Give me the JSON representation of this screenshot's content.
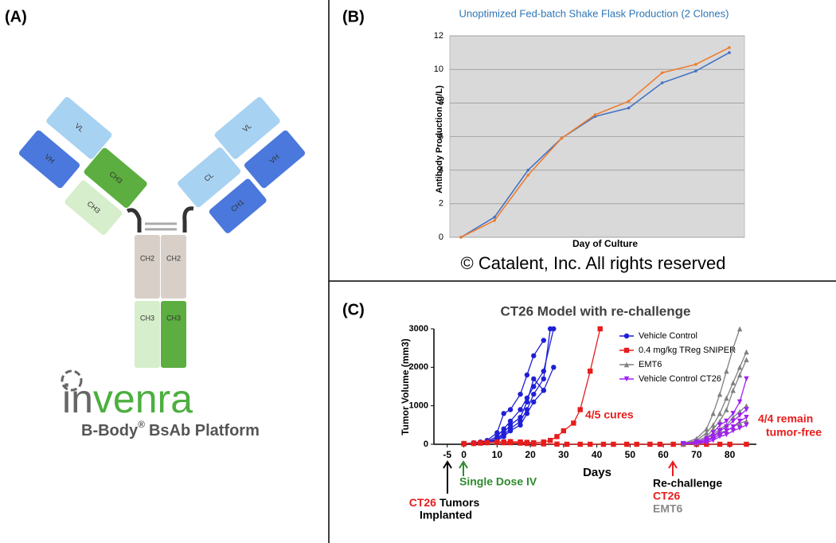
{
  "panel_labels": [
    "(A)",
    "(B)",
    "(C)"
  ],
  "diagram": {
    "domains": [
      "VL",
      "VH",
      "CH3",
      "CH3",
      "VL",
      "VH",
      "CL",
      "CH1",
      "CH2",
      "CH2",
      "CH3",
      "CH3"
    ],
    "logo": {
      "name_parts": [
        "in",
        "venra"
      ],
      "tagline": [
        "B-Body",
        "®",
        "BsAb Platform"
      ]
    }
  },
  "chart_data": [
    {
      "type": "line",
      "title": "Unoptimized Fed-batch Shake Flask Production (2 Clones)",
      "y_label": "Antibody Production (g/L)",
      "x_label": "Day of Culture",
      "footnote": "© Catalent, Inc.  All rights reserved",
      "categories": [
        null,
        null,
        null,
        null,
        null,
        null,
        null,
        null,
        null
      ],
      "series": [
        {
          "color": "#4472c4",
          "values": [
            0,
            1.2,
            4.0,
            5.9,
            7.2,
            7.7,
            9.2,
            9.9,
            11.0
          ]
        },
        {
          "color": "#ed7d31",
          "values": [
            0,
            1.0,
            3.7,
            5.9,
            7.3,
            8.1,
            9.8,
            10.3,
            11.3
          ]
        }
      ],
      "ylim": [
        0,
        12
      ],
      "yticks": [
        0,
        2,
        4,
        6,
        8,
        10,
        12
      ],
      "grid": true
    },
    {
      "type": "curves",
      "title": "CT26 Model with re-challenge",
      "y_label": "Tumor Volume (mm3)",
      "x_label": "Days",
      "xlim": [
        -9,
        88
      ],
      "xticks": [
        -5,
        0,
        10,
        20,
        30,
        40,
        50,
        60,
        70,
        80
      ],
      "ylim": [
        0,
        3000
      ],
      "yticks": [
        0,
        1000,
        2000,
        3000
      ],
      "series": [
        {
          "name": "Vehicle Control",
          "color": "#1f1fd6",
          "marker": "circle",
          "curves": [
            {
              "x": [
                0,
                3,
                5,
                7,
                10,
                12,
                14,
                17,
                19,
                21,
                24
              ],
              "values": [
                20,
                40,
                60,
                100,
                300,
                800,
                900,
                1300,
                1800,
                2300,
                2700
              ]
            },
            {
              "x": [
                0,
                3,
                5,
                7,
                10,
                12,
                14,
                17,
                19,
                21,
                24,
                27
              ],
              "values": [
                20,
                30,
                50,
                80,
                200,
                400,
                600,
                900,
                1200,
                1500,
                1900,
                3000
              ]
            },
            {
              "x": [
                0,
                3,
                5,
                7,
                10,
                12,
                14,
                17,
                19,
                21,
                24,
                27
              ],
              "values": [
                20,
                30,
                40,
                60,
                150,
                300,
                500,
                700,
                1100,
                1700,
                1400,
                2000
              ]
            },
            {
              "x": [
                0,
                3,
                5,
                7,
                10,
                12,
                14,
                17,
                19,
                21,
                24,
                26
              ],
              "values": [
                10,
                20,
                40,
                50,
                120,
                250,
                400,
                600,
                900,
                1300,
                1700,
                3000
              ]
            },
            {
              "x": [
                0,
                3,
                5,
                7,
                10,
                12,
                14,
                17,
                19,
                21,
                24
              ],
              "values": [
                10,
                20,
                30,
                40,
                100,
                200,
                350,
                500,
                800,
                1100,
                1400
              ]
            }
          ]
        },
        {
          "name": "0.4 mg/kg TReg SNIPER",
          "color": "#e81c1c",
          "marker": "square",
          "curves": [
            {
              "x": [
                0,
                3,
                5,
                7,
                10,
                12,
                14,
                17,
                19,
                21,
                24,
                26,
                28,
                30,
                33,
                35,
                38,
                41
              ],
              "values": [
                20,
                30,
                40,
                50,
                60,
                60,
                70,
                60,
                50,
                40,
                60,
                100,
                200,
                350,
                550,
                900,
                1900,
                3000
              ]
            },
            {
              "x": [
                0,
                3,
                5,
                7,
                10,
                12,
                14,
                17,
                19,
                21,
                24,
                28,
                31,
                35,
                38,
                42,
                45,
                49,
                52,
                56,
                59,
                63,
                66,
                70,
                73,
                77,
                80,
                85
              ],
              "values": [
                10,
                20,
                30,
                40,
                50,
                40,
                40,
                30,
                20,
                10,
                10,
                5,
                0,
                0,
                0,
                0,
                0,
                0,
                0,
                0,
                0,
                0,
                0,
                0,
                0,
                0,
                0,
                0
              ]
            }
          ]
        },
        {
          "name": "EMT6",
          "color": "#808080",
          "marker": "triangle",
          "curves": [
            {
              "x": [
                66,
                70,
                73,
                75,
                77,
                79,
                81,
                83
              ],
              "values": [
                20,
                150,
                400,
                800,
                1300,
                1900,
                2500,
                3000
              ]
            },
            {
              "x": [
                66,
                70,
                73,
                75,
                77,
                79,
                81,
                83,
                85
              ],
              "values": [
                20,
                100,
                300,
                500,
                800,
                1200,
                1600,
                2000,
                2400
              ]
            },
            {
              "x": [
                66,
                70,
                73,
                75,
                77,
                79,
                81,
                83,
                85
              ],
              "values": [
                20,
                80,
                200,
                400,
                600,
                900,
                1400,
                1800,
                2200
              ]
            },
            {
              "x": [
                66,
                70,
                73,
                75,
                77,
                79,
                81,
                83,
                85
              ],
              "values": [
                10,
                50,
                150,
                250,
                400,
                500,
                700,
                850,
                1000
              ]
            },
            {
              "x": [
                66,
                70,
                73,
                75,
                77,
                79,
                81,
                83,
                85
              ],
              "values": [
                10,
                40,
                100,
                200,
                300,
                350,
                450,
                550,
                600
              ]
            }
          ]
        },
        {
          "name": "Vehicle Control CT26",
          "color": "#a020f0",
          "marker": "tri-down",
          "curves": [
            {
              "x": [
                66,
                70,
                73,
                75,
                77,
                79,
                81,
                83,
                85
              ],
              "values": [
                20,
                60,
                150,
                300,
                500,
                600,
                800,
                1100,
                1700
              ]
            },
            {
              "x": [
                66,
                70,
                73,
                75,
                77,
                79,
                81,
                83,
                85
              ],
              "values": [
                10,
                40,
                100,
                200,
                350,
                450,
                600,
                750,
                900
              ]
            },
            {
              "x": [
                66,
                70,
                73,
                75,
                77,
                79,
                81,
                83,
                85
              ],
              "values": [
                10,
                30,
                80,
                150,
                250,
                350,
                450,
                600,
                700
              ]
            },
            {
              "x": [
                66,
                70,
                73,
                75,
                77,
                79,
                81,
                83,
                85
              ],
              "values": [
                10,
                20,
                50,
                100,
                200,
                250,
                350,
                420,
                500
              ]
            }
          ]
        }
      ],
      "annotations": {
        "cures": "4/5 cures",
        "remain": [
          "4/4 remain",
          "tumor-free"
        ],
        "dose": "Single Dose IV",
        "implant": [
          "CT26",
          "Tumors",
          "Implanted"
        ],
        "rechallenge": [
          "Re-challenge",
          "CT26",
          "EMT6"
        ]
      }
    }
  ]
}
